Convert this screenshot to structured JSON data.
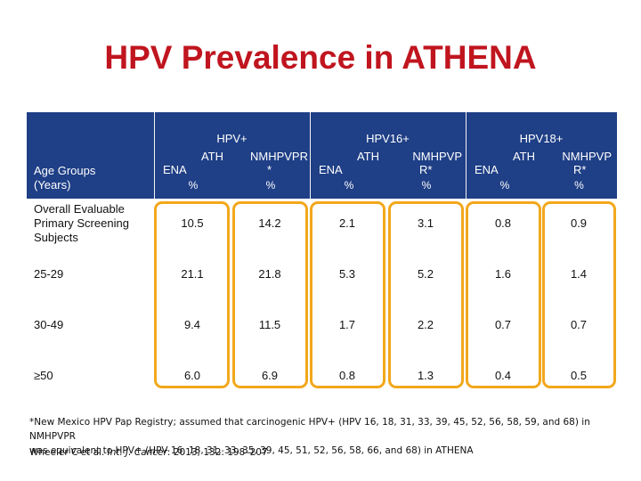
{
  "title": "HPV Prevalence in ATHENA",
  "table": {
    "row_header": [
      "Age Groups",
      "(Years)"
    ],
    "groups": [
      "HPV+",
      "HPV16+",
      "HPV18+"
    ],
    "subcolumns": [
      {
        "line1": "ATH",
        "line2": "ENA",
        "pct": "%"
      },
      {
        "line1": "NMHPVPR",
        "line2": "*",
        "pct": "%"
      },
      {
        "line1": "ATH",
        "line2": "ENA",
        "pct": "%"
      },
      {
        "line1": "NMHPVP",
        "line2": "R*",
        "pct": "%"
      },
      {
        "line1": "ATH",
        "line2": "ENA",
        "pct": "%"
      },
      {
        "line1": "NMHPVP",
        "line2": "R*",
        "pct": "%"
      }
    ],
    "rows": [
      {
        "label": [
          "Overall Evaluable",
          "Primary Screening",
          "Subjects"
        ],
        "values": [
          "10.5",
          "14.2",
          "2.1",
          "3.1",
          "0.8",
          "0.9"
        ]
      },
      {
        "label": [
          "25-29"
        ],
        "values": [
          "21.1",
          "21.8",
          "5.3",
          "5.2",
          "1.6",
          "1.4"
        ]
      },
      {
        "label": [
          "30-49"
        ],
        "values": [
          "9.4",
          "11.5",
          "1.7",
          "2.2",
          "0.7",
          "0.7"
        ]
      },
      {
        "label": [
          "≥50"
        ],
        "values": [
          "6.0",
          "6.9",
          "0.8",
          "1.3",
          "0.4",
          "0.5"
        ]
      }
    ]
  },
  "footnote_line1": "*New Mexico HPV Pap Registry; assumed that carcinogenic HPV+ (HPV 16, 18, 31, 33, 39, 45, 52, 56, 58, 59, and 68) in NMHPVPR",
  "footnote_line2": "was equivalent to HPV+ (HPV 16, 18, 31, 33, 35, 39, 45, 51, 52, 56, 58, 66, and 68) in ATHENA",
  "reference": {
    "authors": "Wheeler C et al.",
    "journal": "Int. J. Cancer",
    "details": ": 2013; 132: 198–207"
  }
}
